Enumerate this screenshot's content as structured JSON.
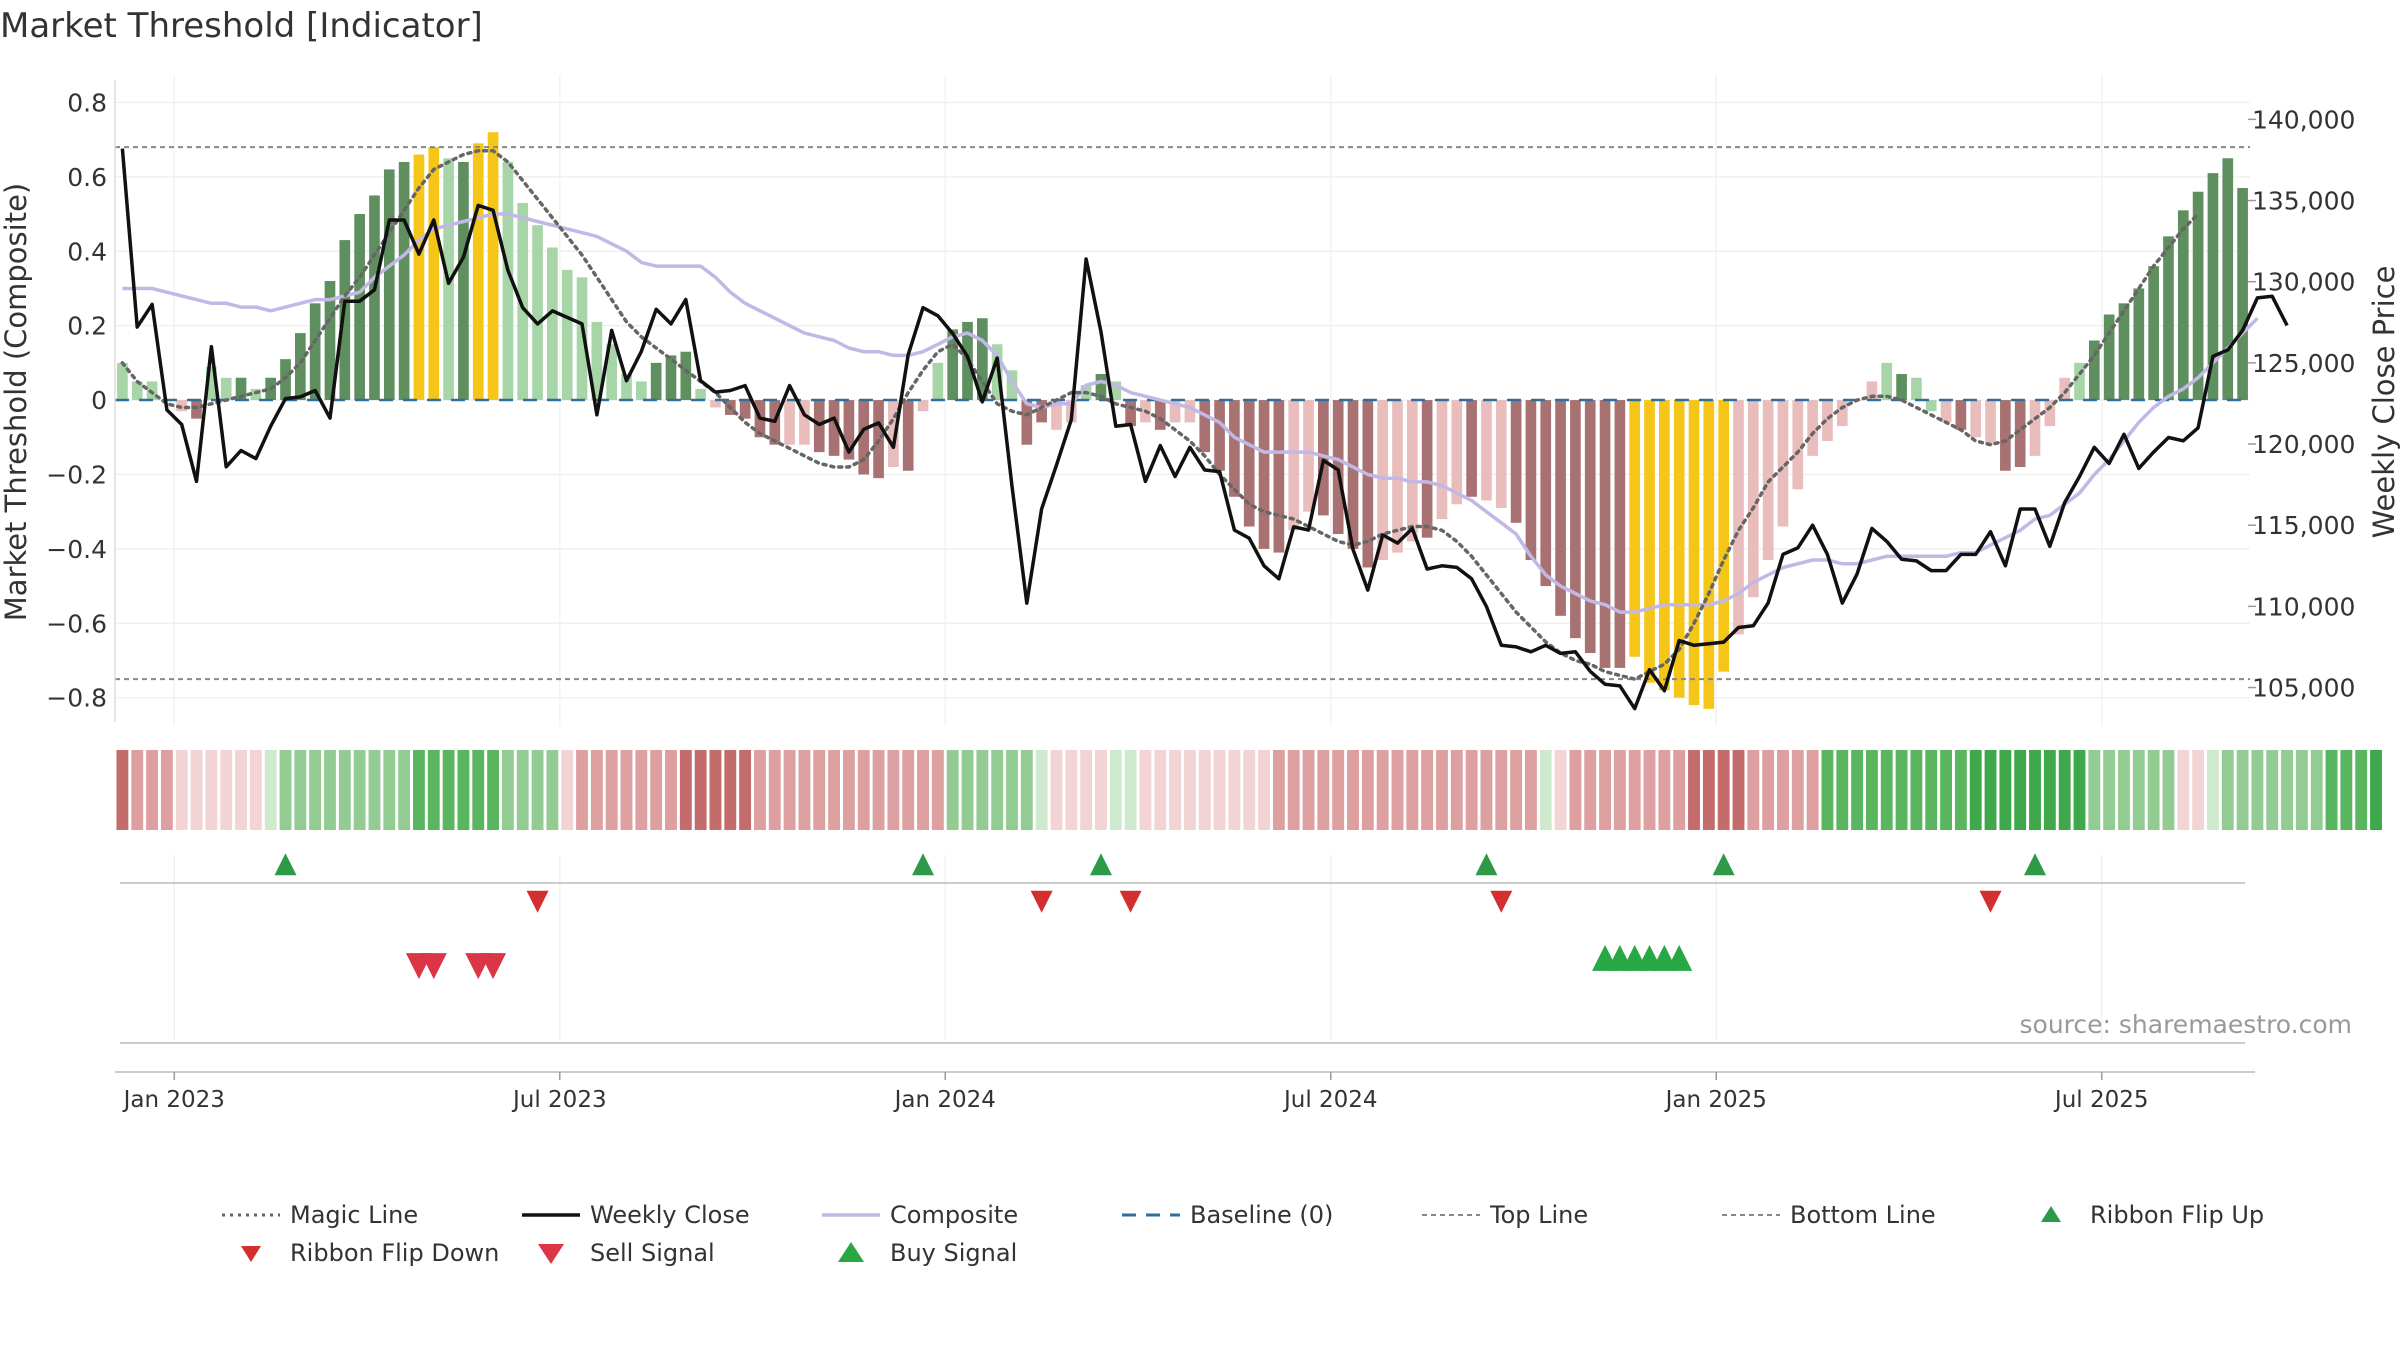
{
  "title": "Market Threshold [Indicator]",
  "source_note": "source: sharemaestro.com",
  "colors": {
    "magic_line": "#666666",
    "weekly_close": "#111111",
    "composite": "#c2b8e6",
    "baseline": "#2e6f9e",
    "threshold_lines": "#888888",
    "bar_strong_up": "#5f8f5f",
    "bar_weak_up": "#a8d5a8",
    "bar_strong_down": "#a97272",
    "bar_weak_down": "#eabdbd",
    "bar_extreme": "#f5c518",
    "flip_up": "#2e9a48",
    "flip_down": "#d32f2f",
    "sell_signal": "#dc3545",
    "buy_signal": "#28a745"
  },
  "chart_data": {
    "type": "bar",
    "title": "Market Threshold [Indicator]",
    "ylabel": "Market Threshold (Composite)",
    "y2label": "Weekly Close Price",
    "ylim": [
      -0.86,
      0.82
    ],
    "y2lim": [
      103000,
      141500
    ],
    "y_ticks": [
      -0.8,
      -0.6,
      -0.4,
      -0.2,
      0,
      0.2,
      0.4,
      0.6,
      0.8
    ],
    "y_tick_labels": [
      "−0.8",
      "−0.6",
      "−0.4",
      "−0.2",
      "0",
      "0.2",
      "0.4",
      "0.6",
      "0.8"
    ],
    "y2_ticks": [
      105000,
      110000,
      115000,
      120000,
      125000,
      130000,
      135000,
      140000
    ],
    "y2_tick_labels": [
      "105,000",
      "110,000",
      "115,000",
      "120,000",
      "125,000",
      "130,000",
      "135,000",
      "140,000"
    ],
    "x_tick_weeks": [
      4,
      30,
      56,
      82,
      108,
      134
    ],
    "x_tick_labels": [
      "Jan 2023",
      "Jul 2023",
      "Jan 2024",
      "Jul 2024",
      "Jan 2025",
      "Jul 2025"
    ],
    "top_line": 0.68,
    "bottom_line": -0.75,
    "baseline": 0,
    "grid": true,
    "composite_bars": [
      0.1,
      0.05,
      0.05,
      0,
      -0.03,
      -0.05,
      0.09,
      0.06,
      0.06,
      0.03,
      0.06,
      0.11,
      0.18,
      0.26,
      0.32,
      0.43,
      0.5,
      0.55,
      0.62,
      0.64,
      0.66,
      0.68,
      0.65,
      0.64,
      0.69,
      0.72,
      0.64,
      0.53,
      0.47,
      0.41,
      0.35,
      0.33,
      0.21,
      0.15,
      0.07,
      0.05,
      0.1,
      0.12,
      0.13,
      0.03,
      -0.02,
      -0.04,
      -0.05,
      -0.1,
      -0.12,
      -0.12,
      -0.12,
      -0.14,
      -0.15,
      -0.16,
      -0.2,
      -0.21,
      -0.18,
      -0.19,
      -0.03,
      0.1,
      0.19,
      0.21,
      0.22,
      0.15,
      0.08,
      -0.12,
      -0.06,
      -0.08,
      -0.06,
      0.04,
      0.07,
      0.05,
      -0.07,
      -0.06,
      -0.08,
      -0.06,
      -0.06,
      -0.14,
      -0.19,
      -0.26,
      -0.34,
      -0.4,
      -0.41,
      -0.35,
      -0.3,
      -0.31,
      -0.36,
      -0.4,
      -0.45,
      -0.43,
      -0.41,
      -0.38,
      -0.37,
      -0.32,
      -0.28,
      -0.26,
      -0.27,
      -0.29,
      -0.33,
      -0.43,
      -0.5,
      -0.58,
      -0.64,
      -0.68,
      -0.72,
      -0.72,
      -0.69,
      -0.76,
      -0.78,
      -0.8,
      -0.82,
      -0.83,
      -0.73,
      -0.63,
      -0.53,
      -0.43,
      -0.34,
      -0.24,
      -0.15,
      -0.11,
      -0.07,
      0,
      0.05,
      0.1,
      0.07,
      0.06,
      -0.03,
      -0.06,
      -0.08,
      -0.1,
      -0.12,
      -0.19,
      -0.18,
      -0.15,
      -0.07,
      0.06,
      0.1,
      0.16,
      0.23,
      0.26,
      0.3,
      0.36,
      0.44,
      0.51,
      0.56,
      0.61,
      0.65,
      0.57
    ],
    "bar_classes": [
      "wu",
      "wu",
      "wu",
      "wd",
      "wd",
      "sd",
      "wu",
      "wu",
      "su",
      "wu",
      "su",
      "su",
      "su",
      "su",
      "su",
      "su",
      "su",
      "su",
      "su",
      "su",
      "y",
      "y",
      "wu",
      "su",
      "y",
      "y",
      "wu",
      "wu",
      "wu",
      "wu",
      "wu",
      "wu",
      "wu",
      "wu",
      "wu",
      "wu",
      "su",
      "su",
      "su",
      "wu",
      "wd",
      "sd",
      "sd",
      "sd",
      "sd",
      "wd",
      "wd",
      "sd",
      "sd",
      "sd",
      "sd",
      "sd",
      "wd",
      "sd",
      "wd",
      "wu",
      "su",
      "su",
      "su",
      "wu",
      "wu",
      "sd",
      "sd",
      "wd",
      "wd",
      "wu",
      "su",
      "wu",
      "sd",
      "wd",
      "sd",
      "wd",
      "wd",
      "sd",
      "sd",
      "sd",
      "sd",
      "sd",
      "sd",
      "wd",
      "wd",
      "sd",
      "sd",
      "sd",
      "sd",
      "wd",
      "wd",
      "wd",
      "sd",
      "wd",
      "wd",
      "sd",
      "wd",
      "wd",
      "sd",
      "sd",
      "sd",
      "sd",
      "sd",
      "sd",
      "sd",
      "sd",
      "y",
      "y",
      "y",
      "y",
      "y",
      "y",
      "y",
      "wd",
      "wd",
      "wd",
      "wd",
      "wd",
      "wd",
      "wd",
      "wd",
      "wd",
      "wd",
      "wu",
      "su",
      "wu",
      "wu",
      "wd",
      "sd",
      "wd",
      "wd",
      "sd",
      "sd",
      "wd",
      "wd",
      "wd",
      "wu",
      "su",
      "su",
      "su",
      "su",
      "su",
      "su",
      "su",
      "su",
      "su",
      "su",
      "su",
      "su",
      "wu"
    ],
    "weekly_close": [
      138200,
      127200,
      128600,
      122100,
      121200,
      117700,
      126000,
      118600,
      119600,
      119100,
      121100,
      122800,
      122900,
      123300,
      121600,
      128800,
      128800,
      129500,
      133800,
      133800,
      131700,
      133800,
      129900,
      131500,
      134700,
      134400,
      130700,
      128400,
      127400,
      128200,
      127800,
      127400,
      121800,
      127000,
      123900,
      125700,
      128300,
      127400,
      128900,
      123900,
      123200,
      123300,
      123600,
      121600,
      121400,
      123600,
      121800,
      121200,
      121600,
      119500,
      120900,
      121300,
      119800,
      125500,
      128400,
      127900,
      126800,
      125400,
      122600,
      125300,
      117400,
      110200,
      116000,
      118700,
      121500,
      131400,
      126900,
      121100,
      121200,
      117700,
      119900,
      118000,
      119800,
      118400,
      118300,
      114700,
      114200,
      112500,
      111700,
      114900,
      114700,
      119000,
      118400,
      113500,
      111000,
      114400,
      113900,
      114800,
      112300,
      112500,
      112400,
      111700,
      110000,
      107600,
      107500,
      107200,
      107600,
      107100,
      107200,
      106000,
      105200,
      105100,
      103700,
      106100,
      104800,
      107900,
      107600,
      107700,
      107800,
      108700,
      108800,
      110200,
      113200,
      113600,
      115000,
      113200,
      110200,
      112000,
      114800,
      114000,
      112900,
      112800,
      112200,
      112200,
      113200,
      113200,
      114600,
      112500,
      116000,
      116000,
      113700,
      116400,
      118000,
      119800,
      118800,
      120600,
      118500,
      119500,
      120400,
      120200,
      121000,
      125400,
      125800,
      127000,
      129000,
      129100,
      127300
    ],
    "magic_line": [
      0.1,
      0.05,
      0.02,
      -0.01,
      -0.02,
      -0.02,
      -0.01,
      0,
      0.01,
      0.02,
      0.03,
      0.06,
      0.1,
      0.16,
      0.22,
      0.28,
      0.33,
      0.39,
      0.45,
      0.51,
      0.57,
      0.62,
      0.64,
      0.66,
      0.67,
      0.67,
      0.64,
      0.59,
      0.54,
      0.49,
      0.44,
      0.39,
      0.33,
      0.27,
      0.21,
      0.17,
      0.14,
      0.11,
      0.08,
      0.05,
      0.02,
      -0.02,
      -0.06,
      -0.09,
      -0.11,
      -0.13,
      -0.15,
      -0.17,
      -0.18,
      -0.18,
      -0.16,
      -0.11,
      -0.05,
      0.02,
      0.08,
      0.13,
      0.15,
      0.11,
      0.05,
      -0.01,
      -0.03,
      -0.04,
      -0.02,
      0,
      0.02,
      0.02,
      0.01,
      -0.01,
      -0.02,
      -0.03,
      -0.05,
      -0.08,
      -0.11,
      -0.15,
      -0.2,
      -0.24,
      -0.28,
      -0.3,
      -0.31,
      -0.32,
      -0.34,
      -0.36,
      -0.38,
      -0.39,
      -0.38,
      -0.36,
      -0.35,
      -0.34,
      -0.34,
      -0.35,
      -0.38,
      -0.42,
      -0.47,
      -0.52,
      -0.57,
      -0.61,
      -0.65,
      -0.68,
      -0.7,
      -0.71,
      -0.73,
      -0.74,
      -0.75,
      -0.73,
      -0.71,
      -0.67,
      -0.6,
      -0.52,
      -0.43,
      -0.35,
      -0.29,
      -0.22,
      -0.18,
      -0.14,
      -0.09,
      -0.05,
      -0.02,
      0,
      0.01,
      0.01,
      0,
      -0.02,
      -0.04,
      -0.06,
      -0.08,
      -0.11,
      -0.12,
      -0.11,
      -0.08,
      -0.05,
      -0.02,
      0.02,
      0.07,
      0.12,
      0.18,
      0.24,
      0.3,
      0.36,
      0.41,
      0.46,
      0.5
    ],
    "composite_line": [
      0.3,
      0.3,
      0.3,
      0.29,
      0.28,
      0.27,
      0.26,
      0.26,
      0.25,
      0.25,
      0.24,
      0.25,
      0.26,
      0.27,
      0.27,
      0.28,
      0.29,
      0.33,
      0.36,
      0.39,
      0.43,
      0.46,
      0.47,
      0.48,
      0.49,
      0.5,
      0.5,
      0.49,
      0.48,
      0.47,
      0.46,
      0.45,
      0.44,
      0.42,
      0.4,
      0.37,
      0.36,
      0.36,
      0.36,
      0.36,
      0.33,
      0.29,
      0.26,
      0.24,
      0.22,
      0.2,
      0.18,
      0.17,
      0.16,
      0.14,
      0.13,
      0.13,
      0.12,
      0.12,
      0.13,
      0.15,
      0.17,
      0.18,
      0.16,
      0.12,
      0.05,
      -0.01,
      -0.02,
      -0.01,
      -0.01,
      0.04,
      0.05,
      0.04,
      0.02,
      0.01,
      0,
      -0.01,
      -0.02,
      -0.04,
      -0.06,
      -0.1,
      -0.12,
      -0.14,
      -0.14,
      -0.14,
      -0.14,
      -0.15,
      -0.16,
      -0.18,
      -0.2,
      -0.21,
      -0.21,
      -0.22,
      -0.22,
      -0.23,
      -0.25,
      -0.27,
      -0.3,
      -0.33,
      -0.36,
      -0.42,
      -0.47,
      -0.5,
      -0.52,
      -0.54,
      -0.55,
      -0.57,
      -0.57,
      -0.56,
      -0.55,
      -0.55,
      -0.55,
      -0.55,
      -0.54,
      -0.52,
      -0.49,
      -0.47,
      -0.45,
      -0.44,
      -0.43,
      -0.43,
      -0.44,
      -0.44,
      -0.43,
      -0.42,
      -0.42,
      -0.42,
      -0.42,
      -0.42,
      -0.41,
      -0.41,
      -0.39,
      -0.37,
      -0.35,
      -0.32,
      -0.31,
      -0.28,
      -0.25,
      -0.2,
      -0.16,
      -0.11,
      -0.06,
      -0.02,
      0.01,
      0.03,
      0.06,
      0.1,
      0.14,
      0.18,
      0.22
    ],
    "ribbon": [
      -3,
      -2,
      -2,
      -2,
      -1,
      -1,
      -1,
      -1,
      -1,
      -1,
      1,
      2,
      2,
      2,
      2,
      2,
      2,
      2,
      2,
      2,
      3,
      3,
      3,
      3,
      3,
      3,
      2,
      2,
      2,
      2,
      -1,
      -2,
      -2,
      -2,
      -2,
      -2,
      -2,
      -2,
      -3,
      -3,
      -3,
      -3,
      -3,
      -2,
      -2,
      -2,
      -2,
      -2,
      -2,
      -2,
      -2,
      -2,
      -2,
      -2,
      -2,
      -2,
      2,
      2,
      2,
      2,
      2,
      2,
      1,
      -1,
      -1,
      -1,
      -1,
      1,
      1,
      -1,
      -1,
      -1,
      -1,
      -1,
      -1,
      -1,
      -1,
      -1,
      -2,
      -2,
      -2,
      -2,
      -2,
      -2,
      -2,
      -2,
      -2,
      -2,
      -2,
      -2,
      -2,
      -2,
      -2,
      -2,
      -2,
      -2,
      1,
      -1,
      -2,
      -2,
      -2,
      -2,
      -2,
      -2,
      -2,
      -2,
      -3,
      -3,
      -3,
      -3,
      -2,
      -2,
      -2,
      -2,
      -2,
      3,
      3,
      3,
      3,
      3,
      3,
      3,
      3,
      3,
      3,
      4,
      4,
      4,
      4,
      4,
      4,
      4,
      4,
      2,
      2,
      2,
      2,
      2,
      2,
      -1,
      -1,
      1,
      2,
      2,
      2,
      2,
      2,
      2,
      2,
      3,
      3,
      3,
      4
    ],
    "ribbon_flip_up_weeks": [
      11,
      54,
      66,
      92,
      108,
      129
    ],
    "ribbon_flip_down_weeks": [
      28,
      62,
      68,
      93,
      126
    ],
    "sell_signal_weeks": [
      20,
      21,
      24,
      25
    ],
    "buy_signal_weeks": [
      100,
      101,
      102,
      103,
      104,
      105
    ],
    "legend_position": "bottom"
  },
  "legend": {
    "items": [
      {
        "label": "Magic Line",
        "swatch": "dotted-line"
      },
      {
        "label": "Weekly Close",
        "swatch": "solid-line"
      },
      {
        "label": "Composite",
        "swatch": "light-line"
      },
      {
        "label": "Baseline (0)",
        "swatch": "dashed-line"
      },
      {
        "label": "Top Line",
        "swatch": "thin-dashed-line"
      },
      {
        "label": "Bottom Line",
        "swatch": "thin-dashed-line"
      },
      {
        "label": "Ribbon Flip Up",
        "swatch": "triangle-up"
      },
      {
        "label": "Ribbon Flip Down",
        "swatch": "triangle-down"
      },
      {
        "label": "Sell Signal",
        "swatch": "triangle-down-large"
      },
      {
        "label": "Buy Signal",
        "swatch": "triangle-up-large"
      }
    ]
  }
}
